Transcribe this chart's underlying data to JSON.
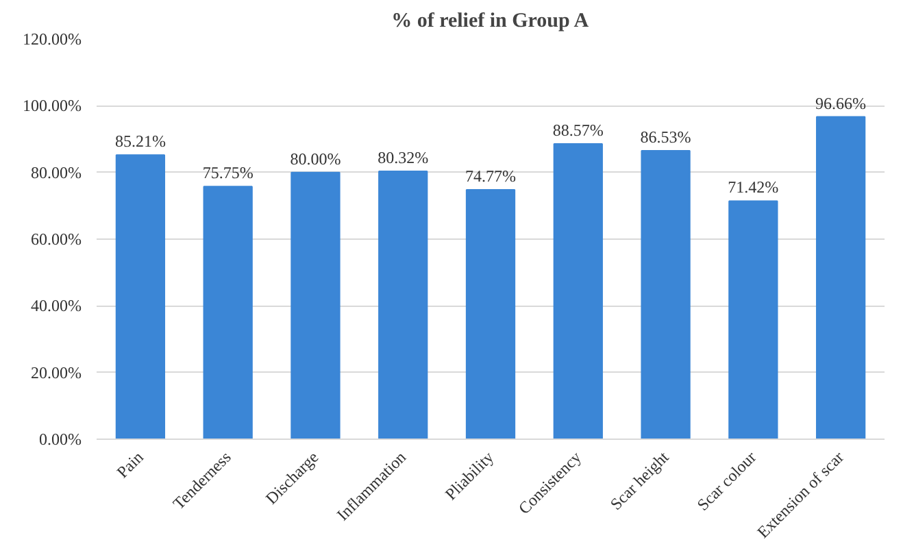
{
  "chart_data": {
    "type": "bar",
    "title": "% of relief in Group A",
    "categories": [
      "Pain",
      "Tenderness",
      "Discharge",
      "Inflammation",
      "Pliability",
      "Consistency",
      "Scar height",
      "Scar colour",
      "Extension of scar"
    ],
    "values": [
      85.21,
      75.75,
      80.0,
      80.32,
      74.77,
      88.57,
      86.53,
      71.42,
      96.66
    ],
    "value_labels": [
      "85.21%",
      "75.75%",
      "80.00%",
      "80.32%",
      "74.77%",
      "88.57%",
      "86.53%",
      "71.42%",
      "96.66%"
    ],
    "color": "#3b86d6",
    "ylim": [
      0,
      120
    ],
    "yticks": [
      {
        "value": 0,
        "label": "0.00%"
      },
      {
        "value": 20,
        "label": "20.00%"
      },
      {
        "value": 40,
        "label": "40.00%"
      },
      {
        "value": 60,
        "label": "60.00%"
      },
      {
        "value": 80,
        "label": "80.00%"
      },
      {
        "value": 100,
        "label": "100.00%"
      },
      {
        "value": 120,
        "label": "120.00%"
      }
    ],
    "grid": "y"
  }
}
